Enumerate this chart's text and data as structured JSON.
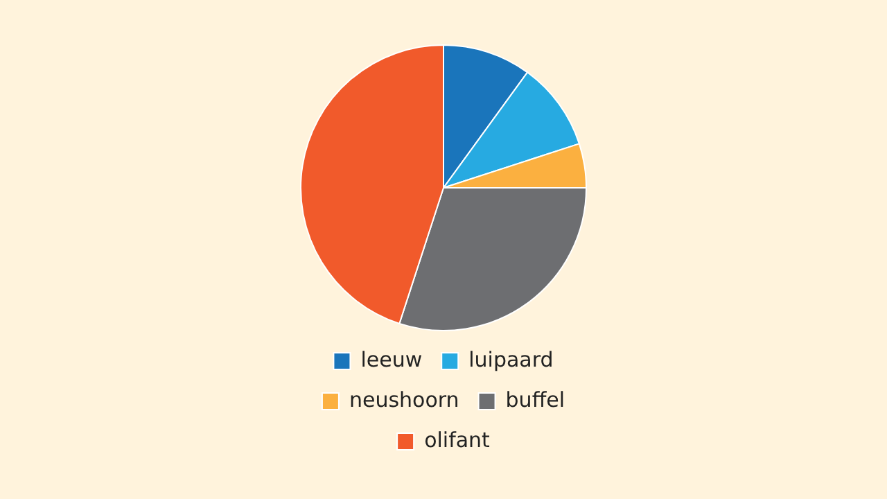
{
  "chart_data": {
    "type": "pie",
    "categories": [
      "leeuw",
      "luipaard",
      "neushoorn",
      "buffel",
      "olifant"
    ],
    "values": [
      10,
      10,
      5,
      30,
      45
    ],
    "colors": [
      "#1a75bb",
      "#27aae1",
      "#fbb040",
      "#6d6e71",
      "#f15a2b"
    ],
    "legend": "bottom"
  }
}
